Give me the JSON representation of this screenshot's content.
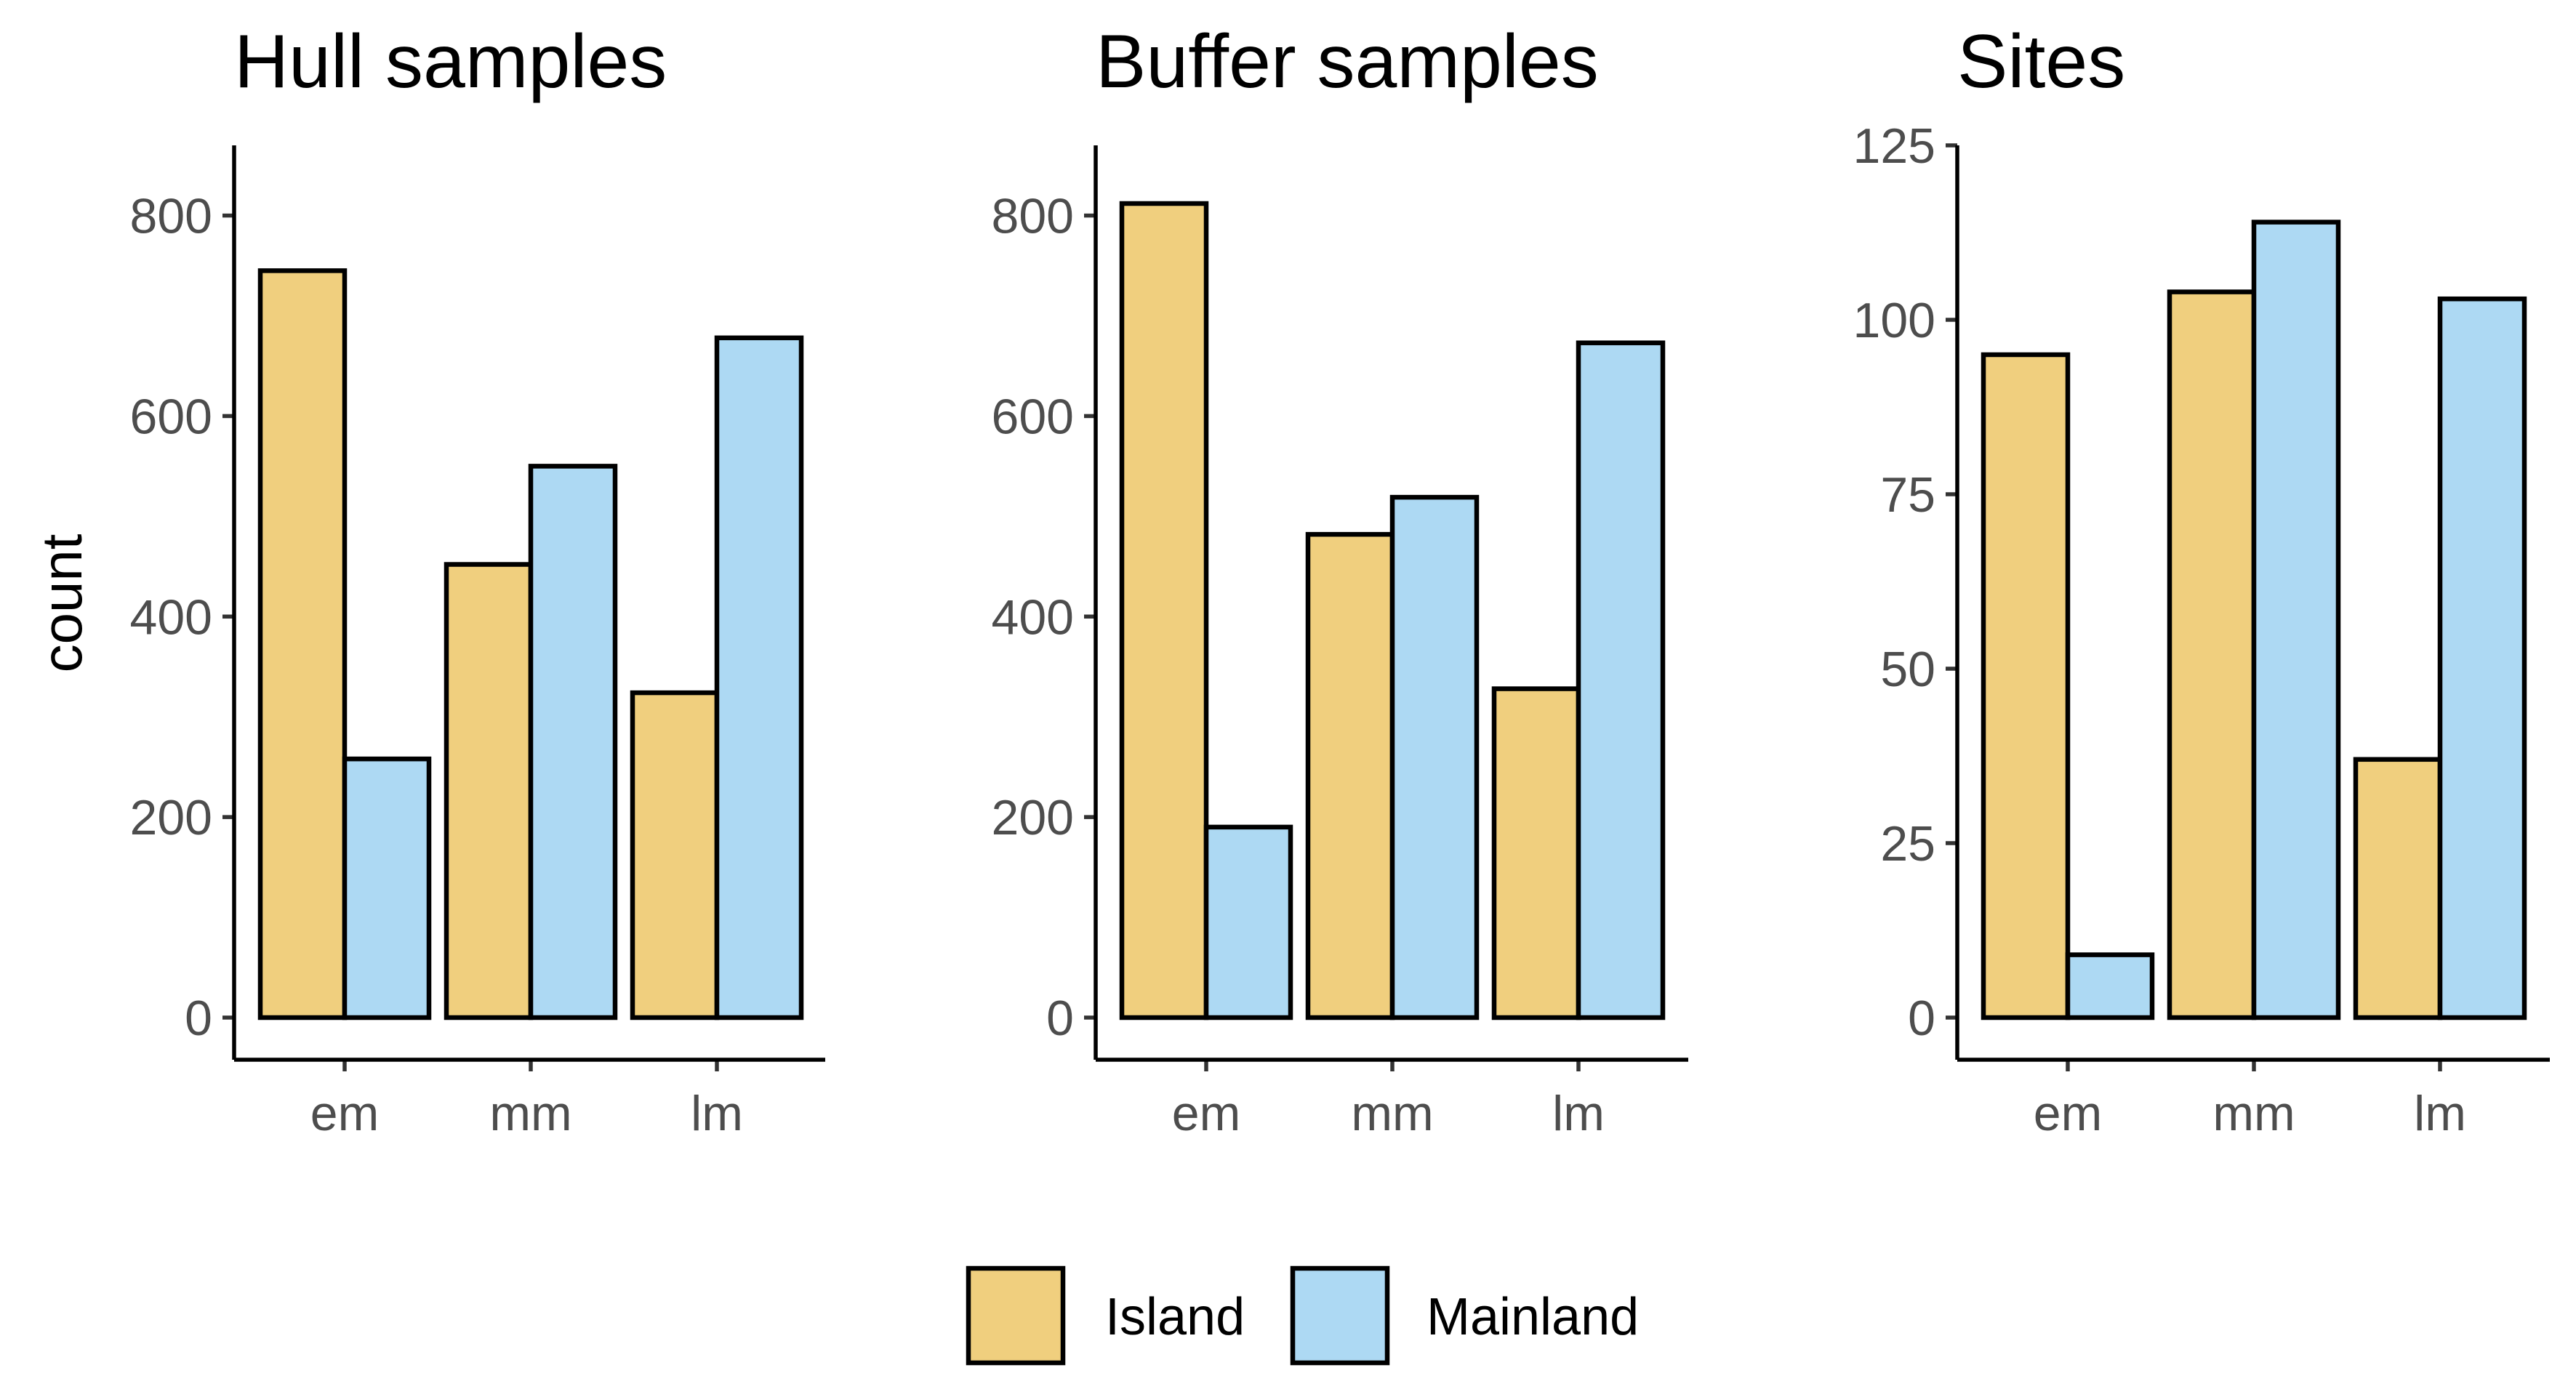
{
  "chart_data": [
    {
      "type": "bar",
      "title": "Hull samples",
      "xlabel": "",
      "ylabel": "count",
      "categories": [
        "em",
        "mm",
        "lm"
      ],
      "series": [
        {
          "name": "Island",
          "values": [
            745,
            452,
            324
          ]
        },
        {
          "name": "Mainland",
          "values": [
            258,
            550,
            678
          ]
        }
      ],
      "ylim": [
        0,
        870
      ],
      "yticks": [
        0,
        200,
        400,
        600,
        800
      ],
      "ytick_labels": [
        "0",
        "200",
        "400",
        "600",
        "800"
      ]
    },
    {
      "type": "bar",
      "title": "Buffer samples",
      "xlabel": "",
      "ylabel": "",
      "categories": [
        "em",
        "mm",
        "lm"
      ],
      "series": [
        {
          "name": "Island",
          "values": [
            812,
            482,
            328
          ]
        },
        {
          "name": "Mainland",
          "values": [
            190,
            519,
            673
          ]
        }
      ],
      "ylim": [
        0,
        870
      ],
      "yticks": [
        0,
        200,
        400,
        600,
        800
      ],
      "ytick_labels": [
        "0",
        "200",
        "400",
        "600",
        "800"
      ]
    },
    {
      "type": "bar",
      "title": "Sites",
      "xlabel": "",
      "ylabel": "",
      "categories": [
        "em",
        "mm",
        "lm"
      ],
      "series": [
        {
          "name": "Island",
          "values": [
            95,
            104,
            37
          ]
        },
        {
          "name": "Mainland",
          "values": [
            9,
            114,
            103
          ]
        }
      ],
      "ylim": [
        0,
        125
      ],
      "yticks": [
        0,
        25,
        50,
        75,
        100,
        125
      ],
      "ytick_labels": [
        "0",
        "25",
        "50",
        "75",
        "100",
        "125"
      ]
    }
  ],
  "legend": {
    "placement": "bottom",
    "items": [
      {
        "label": "Island",
        "color": "#F0CF7E"
      },
      {
        "label": "Mainland",
        "color": "#ADD9F3"
      }
    ]
  },
  "colors": {
    "Island": "#F0CF7E",
    "Mainland": "#ADD9F3"
  }
}
